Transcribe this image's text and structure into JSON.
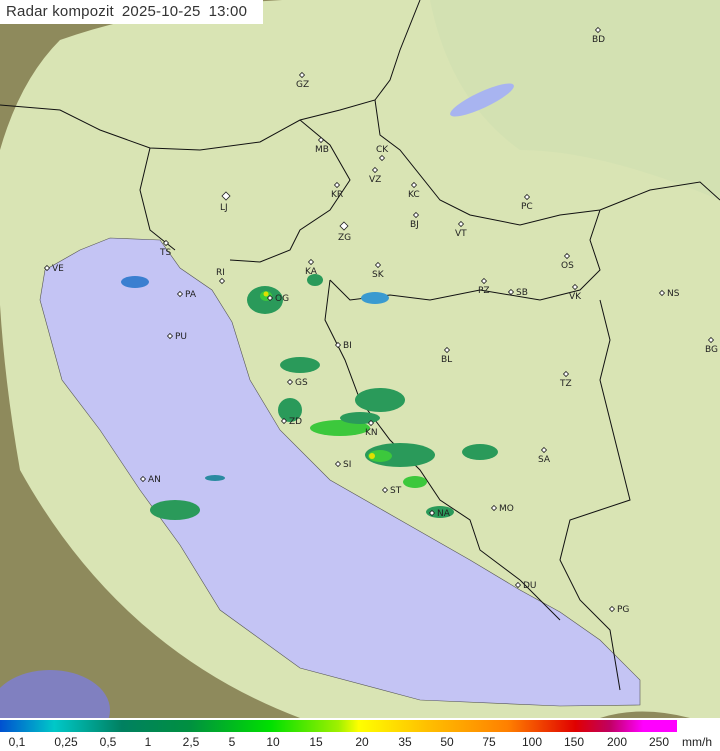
{
  "title": {
    "product": "Radar kompozit",
    "date": "2025-10-25",
    "time": "13:00"
  },
  "legend": {
    "unit": "mm/h",
    "ticks": [
      "0,1",
      "0,25",
      "0,5",
      "1",
      "2,5",
      "5",
      "10",
      "15",
      "20",
      "35",
      "50",
      "75",
      "100",
      "150",
      "200",
      "250"
    ]
  },
  "cities": [
    "BD",
    "GZ",
    "MB",
    "CK",
    "VZ",
    "KR",
    "KC",
    "PC",
    "LJ",
    "BJ",
    "VT",
    "ZG",
    "TS",
    "VE",
    "RI",
    "KA",
    "SK",
    "OS",
    "PA",
    "OG",
    "PZ",
    "SB",
    "VK",
    "NS",
    "PU",
    "BI",
    "BL",
    "BG",
    "GS",
    "TZ",
    "ZD",
    "KN",
    "SI",
    "SA",
    "AN",
    "ST",
    "MO",
    "NA",
    "DU",
    "PG"
  ],
  "colors": {
    "sea": "#c4c4f4",
    "land_coverage": "#d9e4b4",
    "land_outside": "#8e8a5c",
    "rain_light": "#2a9a5a",
    "rain_mid": "#3cc83c",
    "rain_heavy": "#e0e000"
  }
}
